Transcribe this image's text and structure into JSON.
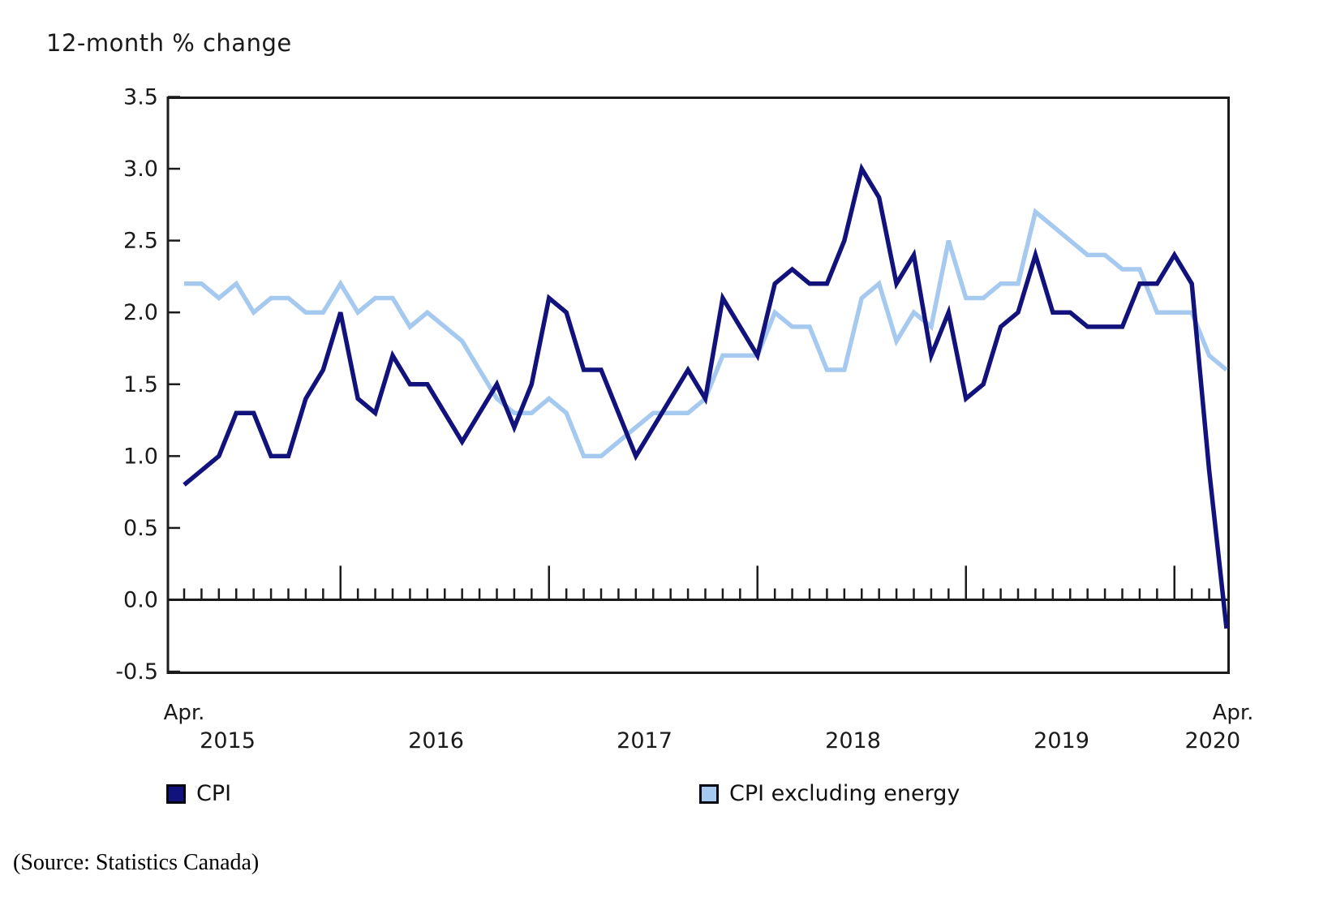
{
  "title": "12-month % change",
  "source_note": "(Source: Statistics Canada)",
  "legend": [
    {
      "label": "CPI",
      "color": "#12127D"
    },
    {
      "label": "CPI excluding energy",
      "color": "#A6C9F0"
    }
  ],
  "chart_data": {
    "type": "line",
    "title": "12-month % change",
    "xlabel": "",
    "ylabel": "12-month % change",
    "ylim": [
      -0.5,
      3.5
    ],
    "ytick_step": 0.5,
    "ytick_labels": [
      "3.5",
      "3.0",
      "2.5",
      "2.0",
      "1.5",
      "1.0",
      "0.5",
      "0.0",
      "-0.5"
    ],
    "grid": false,
    "legend_position": "bottom",
    "x_axis": {
      "start_label": "Apr.",
      "end_label": "Apr.",
      "year_labels": [
        "2015",
        "2016",
        "2017",
        "2018",
        "2019",
        "2020"
      ]
    },
    "x": [
      "2015-04",
      "2015-05",
      "2015-06",
      "2015-07",
      "2015-08",
      "2015-09",
      "2015-10",
      "2015-11",
      "2015-12",
      "2016-01",
      "2016-02",
      "2016-03",
      "2016-04",
      "2016-05",
      "2016-06",
      "2016-07",
      "2016-08",
      "2016-09",
      "2016-10",
      "2016-11",
      "2016-12",
      "2017-01",
      "2017-02",
      "2017-03",
      "2017-04",
      "2017-05",
      "2017-06",
      "2017-07",
      "2017-08",
      "2017-09",
      "2017-10",
      "2017-11",
      "2017-12",
      "2018-01",
      "2018-02",
      "2018-03",
      "2018-04",
      "2018-05",
      "2018-06",
      "2018-07",
      "2018-08",
      "2018-09",
      "2018-10",
      "2018-11",
      "2018-12",
      "2019-01",
      "2019-02",
      "2019-03",
      "2019-04",
      "2019-05",
      "2019-06",
      "2019-07",
      "2019-08",
      "2019-09",
      "2019-10",
      "2019-11",
      "2019-12",
      "2020-01",
      "2020-02",
      "2020-03",
      "2020-04"
    ],
    "series": [
      {
        "name": "CPI",
        "color": "#12127D",
        "values": [
          0.8,
          0.9,
          1.0,
          1.3,
          1.3,
          1.0,
          1.0,
          1.4,
          1.6,
          2.0,
          1.4,
          1.3,
          1.7,
          1.5,
          1.5,
          1.3,
          1.1,
          1.3,
          1.5,
          1.2,
          1.5,
          2.1,
          2.0,
          1.6,
          1.6,
          1.3,
          1.0,
          1.2,
          1.4,
          1.6,
          1.4,
          2.1,
          1.9,
          1.7,
          2.2,
          2.3,
          2.2,
          2.2,
          2.5,
          3.0,
          2.8,
          2.2,
          2.4,
          1.7,
          2.0,
          1.4,
          1.5,
          1.9,
          2.0,
          2.4,
          2.0,
          2.0,
          1.9,
          1.9,
          1.9,
          2.2,
          2.2,
          2.4,
          2.2,
          0.9,
          -0.2
        ]
      },
      {
        "name": "CPI excluding energy",
        "color": "#A6C9F0",
        "values": [
          2.2,
          2.2,
          2.1,
          2.2,
          2.0,
          2.1,
          2.1,
          2.0,
          2.0,
          2.2,
          2.0,
          2.1,
          2.1,
          1.9,
          2.0,
          1.9,
          1.8,
          1.6,
          1.4,
          1.3,
          1.3,
          1.4,
          1.3,
          1.0,
          1.0,
          1.1,
          1.2,
          1.3,
          1.3,
          1.3,
          1.4,
          1.7,
          1.7,
          1.7,
          2.0,
          1.9,
          1.9,
          1.6,
          1.6,
          2.1,
          2.2,
          1.8,
          2.0,
          1.9,
          2.5,
          2.1,
          2.1,
          2.2,
          2.2,
          2.7,
          2.6,
          2.5,
          2.4,
          2.4,
          2.3,
          2.3,
          2.0,
          2.0,
          2.0,
          1.7,
          1.6
        ]
      }
    ]
  }
}
